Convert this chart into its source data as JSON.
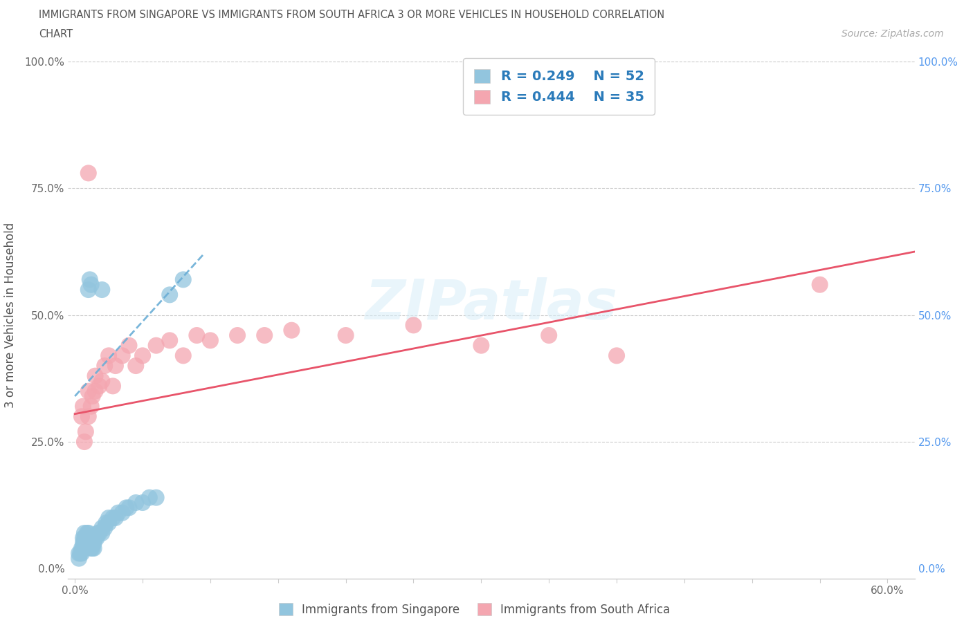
{
  "title_line1": "IMMIGRANTS FROM SINGAPORE VS IMMIGRANTS FROM SOUTH AFRICA 3 OR MORE VEHICLES IN HOUSEHOLD CORRELATION",
  "title_line2": "CHART",
  "source_text": "Source: ZipAtlas.com",
  "ylabel": "3 or more Vehicles in Household",
  "xlim": [
    -0.005,
    0.62
  ],
  "ylim": [
    -0.02,
    1.02
  ],
  "singapore_color": "#92c5de",
  "south_africa_color": "#f4a6b0",
  "singapore_line_color": "#7ab3d4",
  "south_africa_line_color": "#e8657a",
  "singapore_R": 0.249,
  "singapore_N": 52,
  "south_africa_R": 0.444,
  "south_africa_N": 35,
  "legend_R_color": "#2b7bba",
  "background_color": "#ffffff",
  "grid_color": "#cccccc",
  "watermark_text": "ZIPatlas",
  "sg_x": [
    0.003,
    0.003,
    0.004,
    0.005,
    0.005,
    0.006,
    0.006,
    0.006,
    0.007,
    0.007,
    0.007,
    0.008,
    0.008,
    0.009,
    0.009,
    0.01,
    0.01,
    0.01,
    0.011,
    0.011,
    0.012,
    0.012,
    0.013,
    0.013,
    0.014,
    0.014,
    0.015,
    0.016,
    0.017,
    0.018,
    0.02,
    0.02,
    0.022,
    0.023,
    0.025,
    0.025,
    0.028,
    0.03,
    0.032,
    0.035,
    0.038,
    0.04,
    0.045,
    0.05,
    0.055,
    0.06,
    0.07,
    0.08,
    0.01,
    0.011,
    0.012,
    0.02
  ],
  "sg_y": [
    0.02,
    0.03,
    0.03,
    0.03,
    0.04,
    0.04,
    0.05,
    0.06,
    0.05,
    0.06,
    0.07,
    0.05,
    0.06,
    0.05,
    0.07,
    0.05,
    0.06,
    0.07,
    0.05,
    0.06,
    0.04,
    0.06,
    0.04,
    0.06,
    0.04,
    0.05,
    0.06,
    0.06,
    0.07,
    0.07,
    0.07,
    0.08,
    0.08,
    0.09,
    0.09,
    0.1,
    0.1,
    0.1,
    0.11,
    0.11,
    0.12,
    0.12,
    0.13,
    0.13,
    0.14,
    0.14,
    0.54,
    0.57,
    0.55,
    0.57,
    0.56,
    0.55
  ],
  "sa_x": [
    0.005,
    0.006,
    0.007,
    0.008,
    0.01,
    0.01,
    0.012,
    0.013,
    0.015,
    0.015,
    0.018,
    0.02,
    0.022,
    0.025,
    0.028,
    0.03,
    0.035,
    0.04,
    0.045,
    0.05,
    0.06,
    0.07,
    0.08,
    0.09,
    0.1,
    0.12,
    0.14,
    0.16,
    0.2,
    0.25,
    0.3,
    0.35,
    0.4,
    0.55,
    0.01
  ],
  "sa_y": [
    0.3,
    0.32,
    0.25,
    0.27,
    0.3,
    0.35,
    0.32,
    0.34,
    0.35,
    0.38,
    0.36,
    0.37,
    0.4,
    0.42,
    0.36,
    0.4,
    0.42,
    0.44,
    0.4,
    0.42,
    0.44,
    0.45,
    0.42,
    0.46,
    0.45,
    0.46,
    0.46,
    0.47,
    0.46,
    0.48,
    0.44,
    0.46,
    0.42,
    0.56,
    0.78
  ],
  "sg_trend_x0": 0.0,
  "sg_trend_x1": 0.095,
  "sg_trend_y0": 0.34,
  "sg_trend_y1": 0.62,
  "sa_trend_x0": 0.0,
  "sa_trend_x1": 0.62,
  "sa_trend_y0": 0.305,
  "sa_trend_y1": 0.625
}
